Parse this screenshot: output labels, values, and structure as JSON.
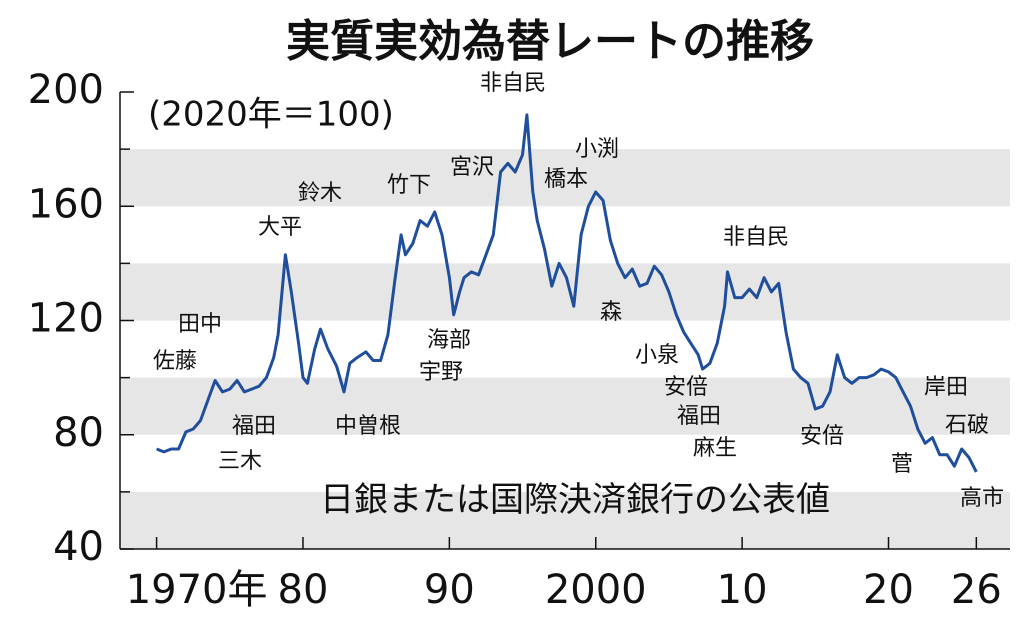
{
  "chart_data": {
    "type": "line",
    "title": "実質実効為替レートの推移",
    "subtitle": "(2020年＝100)",
    "note": "日銀または国際決済銀行の公表値",
    "color": "#1f4e9c",
    "band_color": "#e6e6e6",
    "x": [
      1970.0,
      1970.5,
      1971.0,
      1971.5,
      1972.0,
      1972.5,
      1973.0,
      1973.5,
      1974.0,
      1974.5,
      1975.0,
      1975.5,
      1976.0,
      1976.5,
      1977.0,
      1977.5,
      1978.0,
      1978.3,
      1978.8,
      1979.2,
      1979.7,
      1980.0,
      1980.3,
      1980.8,
      1981.2,
      1981.7,
      1982.3,
      1982.8,
      1983.2,
      1983.7,
      1984.3,
      1984.8,
      1985.3,
      1985.8,
      1986.3,
      1986.7,
      1987.0,
      1987.5,
      1988.0,
      1988.5,
      1989.0,
      1989.5,
      1990.0,
      1990.3,
      1990.7,
      1991.0,
      1991.5,
      1992.0,
      1992.5,
      1993.0,
      1993.5,
      1994.0,
      1994.5,
      1995.0,
      1995.3,
      1995.7,
      1996.0,
      1996.5,
      1997.0,
      1997.5,
      1998.0,
      1998.5,
      1999.0,
      1999.5,
      2000.0,
      2000.5,
      2001.0,
      2001.5,
      2002.0,
      2002.5,
      2003.0,
      2003.5,
      2004.0,
      2004.5,
      2005.0,
      2005.5,
      2006.0,
      2006.5,
      2007.0,
      2007.3,
      2007.8,
      2008.3,
      2008.8,
      2009.0,
      2009.5,
      2010.0,
      2010.5,
      2011.0,
      2011.5,
      2012.0,
      2012.5,
      2013.0,
      2013.5,
      2014.0,
      2014.5,
      2015.0,
      2015.5,
      2016.0,
      2016.5,
      2017.0,
      2017.5,
      2018.0,
      2018.5,
      2019.0,
      2019.5,
      2020.0,
      2020.5,
      2021.0,
      2021.5,
      2022.0,
      2022.5,
      2023.0,
      2023.5,
      2024.0,
      2024.5,
      2025.0,
      2025.5,
      2026.0
    ],
    "values": [
      75,
      74,
      75,
      75,
      81,
      82,
      85,
      92,
      99,
      95,
      96,
      99,
      95,
      96,
      97,
      100,
      107,
      115,
      143,
      130,
      112,
      100,
      98,
      110,
      117,
      110,
      104,
      95,
      105,
      107,
      109,
      106,
      106,
      115,
      135,
      150,
      143,
      147,
      155,
      153,
      158,
      150,
      135,
      122,
      130,
      135,
      137,
      136,
      143,
      150,
      172,
      175,
      172,
      178,
      192,
      165,
      155,
      145,
      132,
      140,
      135,
      125,
      150,
      160,
      165,
      162,
      148,
      140,
      135,
      138,
      132,
      133,
      139,
      136,
      130,
      122,
      116,
      112,
      108,
      103,
      105,
      112,
      125,
      137,
      128,
      128,
      131,
      128,
      135,
      130,
      133,
      116,
      103,
      100,
      98,
      89,
      90,
      95,
      108,
      100,
      98,
      100,
      100,
      101,
      103,
      102,
      100,
      95,
      90,
      82,
      77,
      79,
      73,
      73,
      69,
      75,
      72,
      67
    ],
    "xlim": [
      1967.5,
      2028.3
    ],
    "ylim": [
      40,
      200
    ],
    "yticks": [
      40,
      80,
      120,
      160,
      200
    ],
    "xticks": [
      {
        "value": 1970,
        "label": "1970年"
      },
      {
        "value": 1980,
        "label": "80"
      },
      {
        "value": 1990,
        "label": "90"
      },
      {
        "value": 2000,
        "label": "2000"
      },
      {
        "value": 2010,
        "label": "10"
      },
      {
        "value": 2020,
        "label": "20"
      },
      {
        "value": 2026,
        "label": "26"
      }
    ],
    "annotations": [
      "佐藤",
      "田中",
      "三木",
      "福田",
      "大平",
      "鈴木",
      "中曽根",
      "竹下",
      "海部",
      "宇野",
      "宮沢",
      "非自民",
      "橋本",
      "小渕",
      "森",
      "小泉",
      "安倍",
      "福田",
      "麻生",
      "非自民",
      "安倍",
      "菅",
      "岸田",
      "石破",
      "高市"
    ]
  }
}
